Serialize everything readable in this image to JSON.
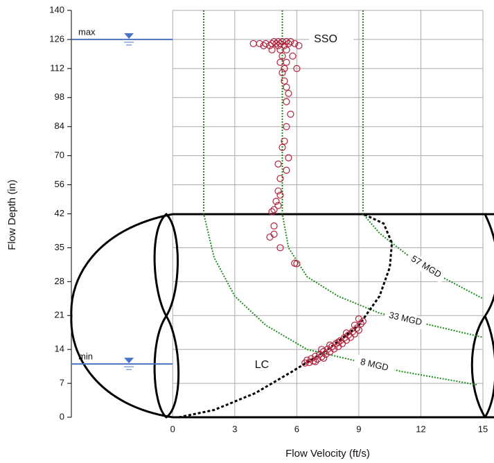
{
  "chart_data": {
    "type": "scatter",
    "xlabel": "Flow Velocity (ft/s)",
    "ylabel": "Flow Depth (in)",
    "xlim": [
      -4.9,
      15
    ],
    "xticks": [
      0,
      3,
      6,
      9,
      12,
      15
    ],
    "ylim": [
      0,
      140
    ],
    "ybreak": 42,
    "yticks": [
      0,
      7,
      14,
      21,
      28,
      35,
      42,
      56,
      70,
      84,
      98,
      112,
      126,
      140
    ],
    "grid": true,
    "levels": [
      {
        "label": "max",
        "value": 126
      },
      {
        "label": "min",
        "value": 11
      }
    ],
    "series": [
      {
        "name": "SSO",
        "color": "#b0223c",
        "x": [
          4.9,
          5.1,
          5.3,
          5.5,
          5.7,
          3.9,
          4.2,
          4.5,
          4.8,
          5.0,
          5.2,
          5.6,
          5.9,
          4.4,
          4.7,
          5.1,
          5.4,
          6.1,
          4.8,
          5.2,
          5.5,
          5.3,
          5.8,
          5.2,
          5.5,
          5.4,
          6.0,
          5.3,
          5.4,
          5.5,
          5.6,
          5.5,
          5.7,
          5.5,
          5.4,
          5.3,
          5.6,
          5.1,
          5.5,
          5.2,
          5.1,
          5.2,
          5.0,
          5.1,
          4.9,
          4.8,
          4.9,
          4.7,
          4.9,
          5.2,
          6.0,
          5.9
        ],
        "y": [
          125,
          125,
          125,
          125,
          125,
          124,
          124,
          124,
          124,
          124,
          124,
          124,
          124,
          123,
          123,
          123,
          123,
          123,
          121,
          121,
          121,
          118,
          118,
          115,
          115,
          112,
          112,
          110,
          106,
          103,
          100,
          96,
          90,
          84,
          77,
          74,
          69,
          66,
          63,
          59,
          53,
          51,
          48,
          46,
          44,
          43,
          39.5,
          37.2,
          37.8,
          35,
          31.7,
          31.8
        ]
      },
      {
        "name": "LC",
        "color": "#b0223c",
        "x": [
          6.4,
          6.5,
          6.6,
          6.7,
          6.8,
          6.9,
          7.0,
          7.1,
          7.2,
          7.3,
          7.4,
          7.5,
          7.6,
          7.7,
          7.8,
          7.9,
          8.0,
          8.1,
          8.2,
          8.3,
          8.4,
          8.5,
          8.6,
          8.7,
          8.8,
          8.9,
          9.0,
          9.1,
          9.2,
          9.0,
          8.8,
          7.2,
          6.9,
          7.6,
          8.4,
          8.0,
          7.3
        ],
        "y": [
          11.2,
          11.8,
          11.3,
          12.1,
          11.6,
          12.6,
          12.0,
          13.0,
          12.5,
          13.6,
          13.0,
          14.1,
          13.5,
          14.6,
          14.1,
          15.2,
          14.6,
          15.8,
          15.2,
          16.4,
          15.9,
          17.0,
          16.5,
          17.7,
          17.2,
          18.4,
          18.0,
          19.3,
          19.8,
          20.3,
          19.0,
          14.0,
          11.5,
          14.9,
          17.4,
          15.5,
          12.2
        ]
      }
    ],
    "curves": [
      {
        "label": "8 MGD",
        "color": "#1a8a1a",
        "x": [
          1.5,
          1.5,
          2,
          3,
          4.5,
          6.5,
          8.5,
          11,
          14.7
        ],
        "y": [
          140,
          42,
          33,
          25,
          19,
          14,
          12,
          9.5,
          6.7
        ]
      },
      {
        "label": "33 MGD",
        "color": "#1a8a1a",
        "x": [
          5.3,
          5.3,
          5.6,
          6.5,
          8,
          10,
          12.5,
          15
        ],
        "y": [
          140,
          42,
          35,
          29,
          25,
          21.5,
          19,
          16.5
        ]
      },
      {
        "label": "57 MGD",
        "color": "#1a8a1a",
        "x": [
          9.2,
          9.2,
          10,
          11.5,
          13,
          15
        ],
        "y": [
          140,
          42,
          38,
          33,
          29,
          24.5
        ]
      }
    ],
    "pipe_curve": {
      "x": [
        0.3,
        2,
        4,
        5.8,
        7.5,
        9,
        10,
        10.5,
        10.6,
        10.2,
        9.2
      ],
      "y": [
        0,
        1.5,
        5,
        9.5,
        14,
        19,
        25,
        31,
        36,
        40,
        42
      ]
    }
  }
}
